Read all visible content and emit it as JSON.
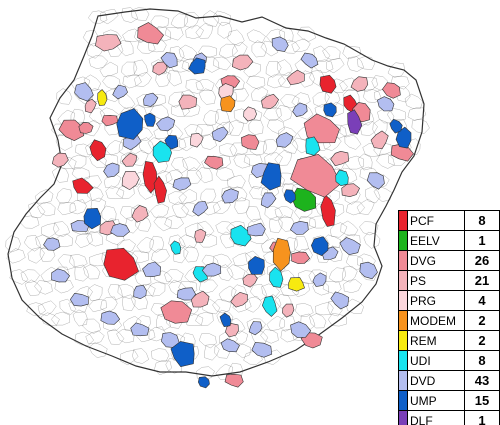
{
  "colors": {
    "background": "#ffffff",
    "unclassified": "#ffffff",
    "border": "#333333"
  },
  "legend": {
    "items": [
      {
        "label": "PCF",
        "count": "8",
        "color": "#e8232e"
      },
      {
        "label": "EELV",
        "count": "1",
        "color": "#1db31d"
      },
      {
        "label": "DVG",
        "count": "26",
        "color": "#f08a96"
      },
      {
        "label": "PS",
        "count": "21",
        "color": "#f4b3bb"
      },
      {
        "label": "PRG",
        "count": "4",
        "color": "#fbd6dc"
      },
      {
        "label": "MODEM",
        "count": "2",
        "color": "#f7931e"
      },
      {
        "label": "REM",
        "count": "2",
        "color": "#f7ea10"
      },
      {
        "label": "UDI",
        "count": "8",
        "color": "#19e3ef"
      },
      {
        "label": "DVD",
        "count": "43",
        "color": "#b3bef0"
      },
      {
        "label": "UMP",
        "count": "15",
        "color": "#0f5fc8"
      },
      {
        "label": "DLF",
        "count": "1",
        "color": "#7a3fb8"
      }
    ]
  }
}
